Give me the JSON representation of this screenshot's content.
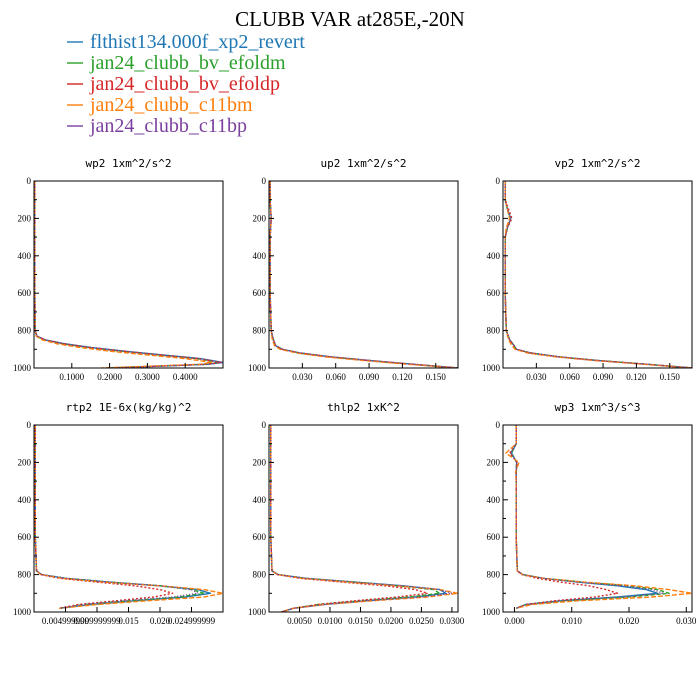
{
  "figure": {
    "title": "CLUBB VAR at285E,-20N"
  },
  "legend": [
    {
      "name": "flthist134.000f_xp2_revert",
      "color": "#1f77b4"
    },
    {
      "name": "jan24_clubb_bv_efoldm",
      "color": "#2ca02c"
    },
    {
      "name": "jan24_clubb_bv_efoldp",
      "color": "#d62728"
    },
    {
      "name": "jan24_clubb_c11bm",
      "color": "#ff7f0e"
    },
    {
      "name": "jan24_clubb_c11bp",
      "color": "#7b3f9e"
    }
  ],
  "chart_data": [
    {
      "type": "line",
      "title": "wp2  1xm^2/s^2",
      "xlim": [
        0,
        0.5
      ],
      "ylim": [
        1000,
        0
      ],
      "xticks": [
        0.1,
        0.2,
        0.3,
        0.4
      ],
      "xtick_labels": [
        "0.1000",
        "0.2000",
        "0.3000",
        "0.4000"
      ],
      "yticks": [
        0,
        200,
        400,
        600,
        800,
        1000
      ],
      "ytick_labels": [
        "0",
        "200",
        "400",
        "600",
        "800",
        "1000"
      ],
      "y": [
        0,
        100,
        300,
        600,
        800,
        830,
        850,
        870,
        890,
        910,
        930,
        950,
        970,
        980,
        1000
      ],
      "series": [
        {
          "color": "#1f77b4",
          "dash": "",
          "values": [
            0.002,
            0.002,
            0.002,
            0.002,
            0.003,
            0.008,
            0.03,
            0.08,
            0.15,
            0.24,
            0.34,
            0.44,
            0.5,
            0.46,
            0.2
          ]
        },
        {
          "color": "#2ca02c",
          "dash": "4,2",
          "values": [
            0.002,
            0.002,
            0.002,
            0.002,
            0.003,
            0.007,
            0.028,
            0.075,
            0.14,
            0.23,
            0.33,
            0.43,
            0.49,
            0.45,
            0.19
          ]
        },
        {
          "color": "#d62728",
          "dash": "2,2",
          "values": [
            0.002,
            0.002,
            0.002,
            0.002,
            0.003,
            0.008,
            0.03,
            0.078,
            0.145,
            0.235,
            0.335,
            0.435,
            0.495,
            0.455,
            0.2
          ]
        },
        {
          "color": "#ff7f0e",
          "dash": "5,2",
          "values": [
            0.002,
            0.002,
            0.002,
            0.002,
            0.003,
            0.006,
            0.022,
            0.06,
            0.12,
            0.2,
            0.3,
            0.4,
            0.47,
            0.44,
            0.18
          ]
        },
        {
          "color": "#7b3f9e",
          "dash": "1,2",
          "values": [
            0.002,
            0.002,
            0.002,
            0.002,
            0.003,
            0.008,
            0.031,
            0.08,
            0.15,
            0.24,
            0.34,
            0.44,
            0.5,
            0.46,
            0.21
          ]
        }
      ]
    },
    {
      "type": "line",
      "title": "up2  1xm^2/s^2",
      "xlim": [
        0,
        0.17
      ],
      "ylim": [
        1000,
        0
      ],
      "xticks": [
        0.03,
        0.06,
        0.09,
        0.12,
        0.15
      ],
      "xtick_labels": [
        "0.030",
        "0.060",
        "0.090",
        "0.120",
        "0.150"
      ],
      "yticks": [
        0,
        200,
        400,
        600,
        800,
        1000
      ],
      "ytick_labels": [
        "0",
        "200",
        "400",
        "600",
        "800",
        "1000"
      ],
      "y": [
        0,
        100,
        200,
        300,
        600,
        800,
        850,
        880,
        900,
        920,
        940,
        960,
        980,
        1000
      ],
      "series": [
        {
          "color": "#1f77b4",
          "dash": "",
          "values": [
            0.001,
            0.001,
            0.002,
            0.001,
            0.001,
            0.002,
            0.004,
            0.006,
            0.012,
            0.028,
            0.055,
            0.09,
            0.13,
            0.17
          ]
        },
        {
          "color": "#2ca02c",
          "dash": "4,2",
          "values": [
            0.001,
            0.001,
            0.002,
            0.001,
            0.001,
            0.002,
            0.004,
            0.006,
            0.012,
            0.027,
            0.054,
            0.089,
            0.129,
            0.17
          ]
        },
        {
          "color": "#d62728",
          "dash": "2,2",
          "values": [
            0.001,
            0.001,
            0.002,
            0.001,
            0.001,
            0.002,
            0.004,
            0.006,
            0.012,
            0.028,
            0.055,
            0.09,
            0.13,
            0.17
          ]
        },
        {
          "color": "#ff7f0e",
          "dash": "5,2",
          "values": [
            0.001,
            0.001,
            0.002,
            0.001,
            0.001,
            0.002,
            0.003,
            0.005,
            0.01,
            0.025,
            0.05,
            0.085,
            0.125,
            0.17
          ]
        },
        {
          "color": "#7b3f9e",
          "dash": "1,2",
          "values": [
            0.001,
            0.001,
            0.002,
            0.001,
            0.001,
            0.002,
            0.004,
            0.006,
            0.012,
            0.028,
            0.056,
            0.091,
            0.131,
            0.17
          ]
        }
      ]
    },
    {
      "type": "line",
      "title": "vp2  1xm^2/s^2",
      "xlim": [
        0,
        0.17
      ],
      "ylim": [
        1000,
        0
      ],
      "xticks": [
        0.03,
        0.06,
        0.09,
        0.12,
        0.15
      ],
      "xtick_labels": [
        "0.030",
        "0.060",
        "0.090",
        "0.120",
        "0.150"
      ],
      "yticks": [
        0,
        200,
        400,
        600,
        800,
        1000
      ],
      "ytick_labels": [
        "0",
        "200",
        "400",
        "600",
        "800",
        "1000"
      ],
      "y": [
        0,
        100,
        150,
        200,
        250,
        300,
        400,
        600,
        800,
        850,
        880,
        900,
        920,
        940,
        960,
        980,
        1000
      ],
      "series": [
        {
          "color": "#1f77b4",
          "dash": "",
          "values": [
            0.002,
            0.002,
            0.004,
            0.007,
            0.004,
            0.002,
            0.002,
            0.002,
            0.003,
            0.006,
            0.01,
            0.012,
            0.025,
            0.05,
            0.085,
            0.13,
            0.17
          ]
        },
        {
          "color": "#2ca02c",
          "dash": "4,2",
          "values": [
            0.002,
            0.002,
            0.004,
            0.006,
            0.004,
            0.002,
            0.002,
            0.002,
            0.003,
            0.006,
            0.01,
            0.012,
            0.025,
            0.05,
            0.085,
            0.13,
            0.17
          ]
        },
        {
          "color": "#d62728",
          "dash": "2,2",
          "values": [
            0.002,
            0.002,
            0.005,
            0.008,
            0.004,
            0.002,
            0.002,
            0.002,
            0.003,
            0.006,
            0.01,
            0.012,
            0.025,
            0.05,
            0.085,
            0.13,
            0.17
          ]
        },
        {
          "color": "#ff7f0e",
          "dash": "5,2",
          "values": [
            0.002,
            0.002,
            0.004,
            0.006,
            0.003,
            0.002,
            0.002,
            0.002,
            0.003,
            0.005,
            0.008,
            0.011,
            0.022,
            0.047,
            0.082,
            0.127,
            0.17
          ]
        },
        {
          "color": "#7b3f9e",
          "dash": "1,2",
          "values": [
            0.002,
            0.002,
            0.004,
            0.007,
            0.004,
            0.002,
            0.002,
            0.002,
            0.003,
            0.006,
            0.01,
            0.012,
            0.025,
            0.05,
            0.085,
            0.13,
            0.17
          ]
        }
      ]
    },
    {
      "type": "line",
      "title": "rtp2  1E-6x(kg/kg)^2",
      "xlim": [
        0,
        0.03
      ],
      "ylim": [
        1000,
        0
      ],
      "xticks": [
        0.005,
        0.01,
        0.015,
        0.02,
        0.025
      ],
      "xtick_labels": [
        "0.004999999",
        "0.009999999",
        "0.015",
        "0.020",
        "0.024999999"
      ],
      "yticks": [
        0,
        200,
        400,
        600,
        800,
        1000
      ],
      "ytick_labels": [
        "0",
        "200",
        "400",
        "600",
        "800",
        "1000"
      ],
      "y": [
        0,
        200,
        400,
        600,
        780,
        800,
        820,
        840,
        860,
        880,
        900,
        920,
        940,
        960,
        980
      ],
      "series": [
        {
          "color": "#1f77b4",
          "dash": "",
          "values": [
            0.0002,
            0.0002,
            0.0002,
            0.0002,
            0.0004,
            0.0012,
            0.005,
            0.012,
            0.02,
            0.026,
            0.028,
            0.024,
            0.016,
            0.009,
            0.004
          ]
        },
        {
          "color": "#2ca02c",
          "dash": "4,2",
          "values": [
            0.0002,
            0.0002,
            0.0002,
            0.0002,
            0.0004,
            0.0012,
            0.005,
            0.012,
            0.02,
            0.025,
            0.027,
            0.023,
            0.015,
            0.008,
            0.004
          ]
        },
        {
          "color": "#d62728",
          "dash": "2,2",
          "values": [
            0.0002,
            0.0002,
            0.0002,
            0.0002,
            0.0004,
            0.0011,
            0.004,
            0.01,
            0.016,
            0.02,
            0.022,
            0.019,
            0.013,
            0.007,
            0.004
          ]
        },
        {
          "color": "#ff7f0e",
          "dash": "5,2",
          "values": [
            0.0002,
            0.0002,
            0.0002,
            0.0002,
            0.0004,
            0.0011,
            0.0045,
            0.011,
            0.02,
            0.027,
            0.03,
            0.027,
            0.018,
            0.01,
            0.004
          ]
        },
        {
          "color": "#7b3f9e",
          "dash": "1,2",
          "values": [
            0.0002,
            0.0002,
            0.0002,
            0.0002,
            0.0004,
            0.0012,
            0.005,
            0.012,
            0.02,
            0.025,
            0.026,
            0.022,
            0.014,
            0.008,
            0.004
          ]
        }
      ]
    },
    {
      "type": "line",
      "title": "thlp2  1xK^2",
      "xlim": [
        0,
        0.031
      ],
      "ylim": [
        1000,
        0
      ],
      "xticks": [
        0.005,
        0.01,
        0.015,
        0.02,
        0.025,
        0.03
      ],
      "xtick_labels": [
        "0.0050",
        "0.0100",
        "0.0150",
        "0.0200",
        "0.0250",
        "0.0300"
      ],
      "yticks": [
        0,
        200,
        400,
        600,
        800,
        1000
      ],
      "ytick_labels": [
        "0",
        "200",
        "400",
        "600",
        "800",
        "1000"
      ],
      "y": [
        0,
        200,
        400,
        600,
        780,
        800,
        820,
        840,
        860,
        880,
        900,
        920,
        940,
        960,
        980,
        1000
      ],
      "series": [
        {
          "color": "#1f77b4",
          "dash": "",
          "values": [
            0.0003,
            0.0003,
            0.0003,
            0.0003,
            0.0005,
            0.0015,
            0.006,
            0.014,
            0.022,
            0.028,
            0.029,
            0.024,
            0.016,
            0.009,
            0.004,
            0.002
          ]
        },
        {
          "color": "#2ca02c",
          "dash": "4,2",
          "values": [
            0.0003,
            0.0003,
            0.0003,
            0.0003,
            0.0005,
            0.0015,
            0.006,
            0.014,
            0.021,
            0.027,
            0.028,
            0.023,
            0.015,
            0.008,
            0.004,
            0.002
          ]
        },
        {
          "color": "#d62728",
          "dash": "2,2",
          "values": [
            0.0003,
            0.0003,
            0.0003,
            0.0003,
            0.0005,
            0.0014,
            0.005,
            0.012,
            0.019,
            0.024,
            0.026,
            0.021,
            0.014,
            0.008,
            0.004,
            0.002
          ]
        },
        {
          "color": "#ff7f0e",
          "dash": "5,2",
          "values": [
            0.0003,
            0.0003,
            0.0003,
            0.0003,
            0.0005,
            0.0014,
            0.0055,
            0.013,
            0.021,
            0.028,
            0.031,
            0.026,
            0.017,
            0.009,
            0.004,
            0.002
          ]
        },
        {
          "color": "#7b3f9e",
          "dash": "1,2",
          "values": [
            0.0003,
            0.0003,
            0.0003,
            0.0003,
            0.0005,
            0.0015,
            0.006,
            0.014,
            0.022,
            0.028,
            0.03,
            0.025,
            0.016,
            0.009,
            0.004,
            0.002
          ]
        }
      ]
    },
    {
      "type": "line",
      "title": "wp3  1xm^3/s^3",
      "xlim": [
        -0.002,
        0.031
      ],
      "ylim": [
        1000,
        0
      ],
      "xticks": [
        0.0,
        0.01,
        0.02,
        0.03
      ],
      "xtick_labels": [
        "0.000",
        "0.010",
        "0.020",
        "0.030"
      ],
      "yticks": [
        0,
        200,
        400,
        600,
        800,
        1000
      ],
      "ytick_labels": [
        "0",
        "200",
        "400",
        "600",
        "800",
        "1000"
      ],
      "y": [
        0,
        100,
        150,
        200,
        250,
        300,
        600,
        780,
        800,
        820,
        840,
        860,
        880,
        900,
        920,
        940,
        960,
        980
      ],
      "series": [
        {
          "color": "#1f77b4",
          "dash": "",
          "values": [
            0.0003,
            0.0003,
            -0.0005,
            0.0004,
            0.0003,
            0.0003,
            0.0003,
            0.0005,
            0.0015,
            0.005,
            0.011,
            0.018,
            0.023,
            0.025,
            0.018,
            0.008,
            0.002,
            0.0003
          ]
        },
        {
          "color": "#2ca02c",
          "dash": "4,2",
          "values": [
            0.0003,
            0.0003,
            -0.0006,
            0.0004,
            0.0003,
            0.0003,
            0.0003,
            0.0005,
            0.0015,
            0.005,
            0.012,
            0.02,
            0.025,
            0.027,
            0.02,
            0.009,
            0.002,
            0.0003
          ]
        },
        {
          "color": "#d62728",
          "dash": "2,2",
          "values": [
            0.0003,
            0.0003,
            -0.0008,
            0.0005,
            0.0003,
            0.0003,
            0.0003,
            0.0005,
            0.0013,
            0.004,
            0.008,
            0.013,
            0.016,
            0.018,
            0.014,
            0.007,
            0.002,
            0.0003
          ]
        },
        {
          "color": "#ff7f0e",
          "dash": "5,2",
          "values": [
            0.0003,
            0.0003,
            -0.0015,
            0.0008,
            0.0002,
            0.0003,
            0.0003,
            0.0005,
            0.0014,
            0.005,
            0.012,
            0.021,
            0.027,
            0.031,
            0.024,
            0.011,
            0.003,
            0.0003
          ]
        },
        {
          "color": "#7b3f9e",
          "dash": "1,2",
          "values": [
            0.0003,
            0.0003,
            -0.0007,
            0.0004,
            0.0003,
            0.0003,
            0.0003,
            0.0005,
            0.0015,
            0.005,
            0.011,
            0.019,
            0.024,
            0.026,
            0.019,
            0.008,
            0.002,
            0.0003
          ]
        }
      ]
    }
  ]
}
